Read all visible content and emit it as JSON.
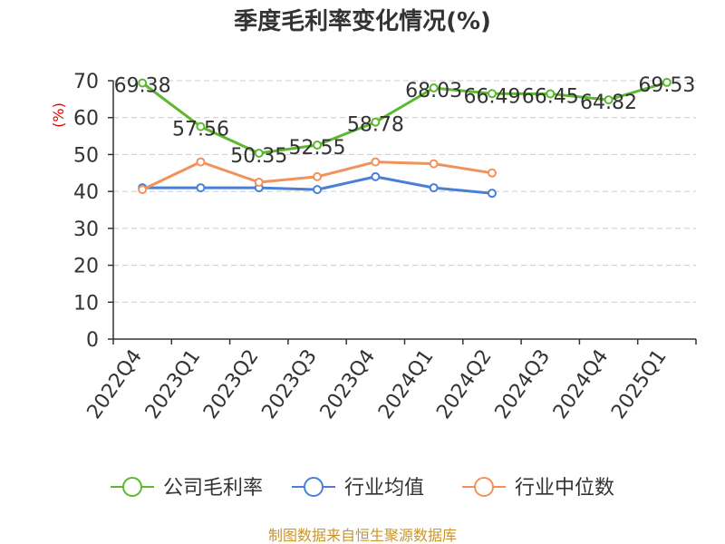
{
  "chart_data": {
    "type": "line",
    "title": "季度毛利率变化情况(%)",
    "ylabel": "(%)",
    "xlabel": "",
    "categories": [
      "2022Q4",
      "2023Q1",
      "2023Q2",
      "2023Q3",
      "2023Q4",
      "2024Q1",
      "2024Q2",
      "2024Q3",
      "2024Q4",
      "2025Q1"
    ],
    "ylim": [
      0,
      70
    ],
    "yticks": [
      0,
      10,
      20,
      30,
      40,
      50,
      60,
      70
    ],
    "grid": true,
    "legend_position": "bottom",
    "series": [
      {
        "name": "公司毛利率",
        "color": "#5cb82e",
        "values": [
          69.38,
          57.56,
          50.35,
          52.55,
          58.78,
          68.03,
          66.49,
          66.45,
          64.82,
          69.53
        ],
        "data_labels": [
          "69.38",
          "57.56",
          "50.35",
          "52.55",
          "58.78",
          "68.03",
          "66.49",
          "66.45",
          "64.82",
          "69.53"
        ]
      },
      {
        "name": "行业均值",
        "color": "#4a7fd6",
        "values": [
          41.0,
          41.0,
          41.0,
          40.5,
          44.0,
          41.0,
          39.5,
          null,
          null,
          null
        ]
      },
      {
        "name": "行业中位数",
        "color": "#f2925b",
        "values": [
          40.5,
          48.0,
          42.5,
          44.0,
          48.0,
          47.5,
          45.0,
          null,
          null,
          null
        ]
      }
    ]
  },
  "source": "制图数据来自恒生聚源数据库"
}
